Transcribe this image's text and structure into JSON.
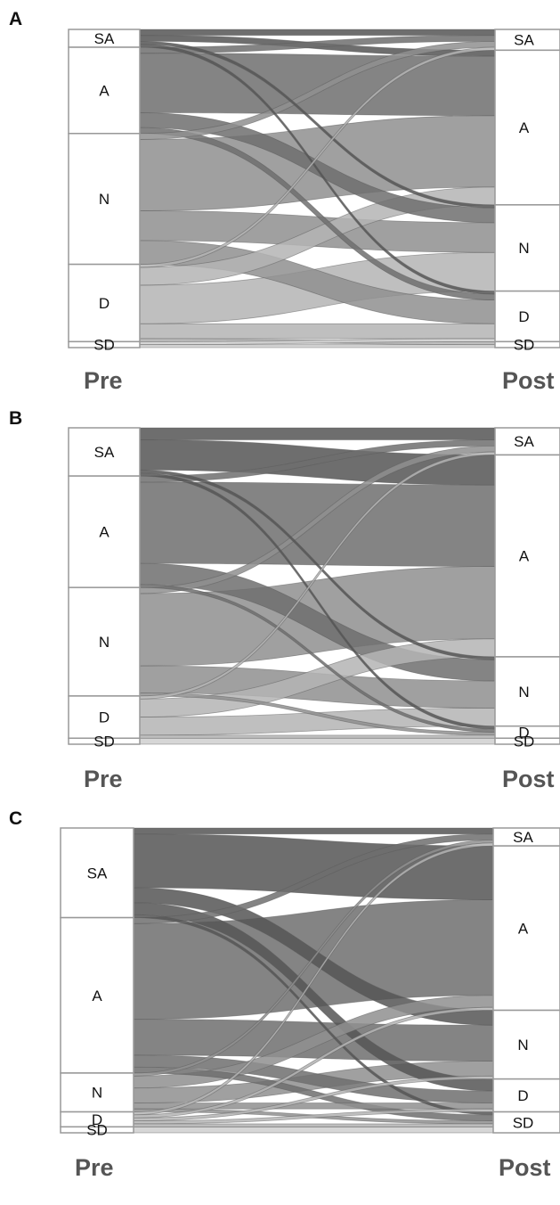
{
  "chart_data": [
    {
      "type": "alluvial",
      "panel_label": "A",
      "left_axis_label": "Pre",
      "right_axis_label": "Post",
      "categories": [
        "SA",
        "A",
        "N",
        "D",
        "SD"
      ],
      "pre_totals": [
        6,
        29,
        44,
        26,
        2
      ],
      "post_totals": [
        7,
        52,
        29,
        17,
        2
      ],
      "flows": [
        {
          "from": "SA",
          "to": "SA",
          "value": 2
        },
        {
          "from": "SA",
          "to": "A",
          "value": 2
        },
        {
          "from": "SA",
          "to": "N",
          "value": 1
        },
        {
          "from": "SA",
          "to": "D",
          "value": 1
        },
        {
          "from": "A",
          "to": "SA",
          "value": 2
        },
        {
          "from": "A",
          "to": "A",
          "value": 20
        },
        {
          "from": "A",
          "to": "N",
          "value": 5
        },
        {
          "from": "A",
          "to": "D",
          "value": 2
        },
        {
          "from": "N",
          "to": "SA",
          "value": 2
        },
        {
          "from": "N",
          "to": "A",
          "value": 24
        },
        {
          "from": "N",
          "to": "N",
          "value": 10
        },
        {
          "from": "N",
          "to": "D",
          "value": 8
        },
        {
          "from": "D",
          "to": "SA",
          "value": 1
        },
        {
          "from": "D",
          "to": "A",
          "value": 6
        },
        {
          "from": "D",
          "to": "N",
          "value": 13
        },
        {
          "from": "D",
          "to": "D",
          "value": 5
        },
        {
          "from": "D",
          "to": "SD",
          "value": 1
        },
        {
          "from": "SD",
          "to": "D",
          "value": 1
        },
        {
          "from": "SD",
          "to": "SD",
          "value": 1
        }
      ]
    },
    {
      "type": "alluvial",
      "panel_label": "B",
      "left_axis_label": "Pre",
      "right_axis_label": "Post",
      "categories": [
        "SA",
        "A",
        "N",
        "D",
        "SD"
      ],
      "pre_totals": [
        16,
        37,
        36,
        14,
        2
      ],
      "post_totals": [
        9,
        67,
        23,
        4,
        2
      ],
      "flows": [
        {
          "from": "SA",
          "to": "SA",
          "value": 4
        },
        {
          "from": "SA",
          "to": "A",
          "value": 10
        },
        {
          "from": "SA",
          "to": "N",
          "value": 1
        },
        {
          "from": "SA",
          "to": "D",
          "value": 1
        },
        {
          "from": "A",
          "to": "SA",
          "value": 2
        },
        {
          "from": "A",
          "to": "A",
          "value": 27
        },
        {
          "from": "A",
          "to": "N",
          "value": 7
        },
        {
          "from": "A",
          "to": "D",
          "value": 1
        },
        {
          "from": "N",
          "to": "SA",
          "value": 2
        },
        {
          "from": "N",
          "to": "A",
          "value": 24
        },
        {
          "from": "N",
          "to": "N",
          "value": 9
        },
        {
          "from": "N",
          "to": "D",
          "value": 1
        },
        {
          "from": "D",
          "to": "SA",
          "value": 1
        },
        {
          "from": "D",
          "to": "A",
          "value": 6
        },
        {
          "from": "D",
          "to": "N",
          "value": 6
        },
        {
          "from": "D",
          "to": "D",
          "value": 1
        },
        {
          "from": "SD",
          "to": "SD",
          "value": 2
        }
      ]
    },
    {
      "type": "alluvial",
      "panel_label": "C",
      "left_axis_label": "Pre",
      "right_axis_label": "Post",
      "categories": [
        "SA",
        "A",
        "N",
        "D",
        "SD"
      ],
      "pre_totals": [
        30,
        52,
        13,
        5,
        2
      ],
      "post_totals": [
        6,
        55,
        23,
        11,
        7
      ],
      "flows": [
        {
          "from": "SA",
          "to": "SA",
          "value": 2
        },
        {
          "from": "SA",
          "to": "A",
          "value": 18
        },
        {
          "from": "SA",
          "to": "N",
          "value": 5
        },
        {
          "from": "SA",
          "to": "D",
          "value": 4
        },
        {
          "from": "SA",
          "to": "SD",
          "value": 1
        },
        {
          "from": "A",
          "to": "SA",
          "value": 2
        },
        {
          "from": "A",
          "to": "A",
          "value": 32
        },
        {
          "from": "A",
          "to": "N",
          "value": 12
        },
        {
          "from": "A",
          "to": "D",
          "value": 4
        },
        {
          "from": "A",
          "to": "SD",
          "value": 2
        },
        {
          "from": "N",
          "to": "SA",
          "value": 1
        },
        {
          "from": "N",
          "to": "A",
          "value": 4
        },
        {
          "from": "N",
          "to": "N",
          "value": 5
        },
        {
          "from": "N",
          "to": "D",
          "value": 2
        },
        {
          "from": "N",
          "to": "SD",
          "value": 1
        },
        {
          "from": "D",
          "to": "SA",
          "value": 1
        },
        {
          "from": "D",
          "to": "A",
          "value": 1
        },
        {
          "from": "D",
          "to": "N",
          "value": 1
        },
        {
          "from": "D",
          "to": "D",
          "value": 1
        },
        {
          "from": "D",
          "to": "SD",
          "value": 1
        },
        {
          "from": "SD",
          "to": "SD",
          "value": 2
        }
      ]
    }
  ],
  "flow_colors": {
    "SA": "#555555",
    "A": "#6e6e6e",
    "N": "#8f8f8f",
    "D": "#b4b4b4",
    "SD": "#cfcfcf"
  },
  "node_border_color": "#999999"
}
